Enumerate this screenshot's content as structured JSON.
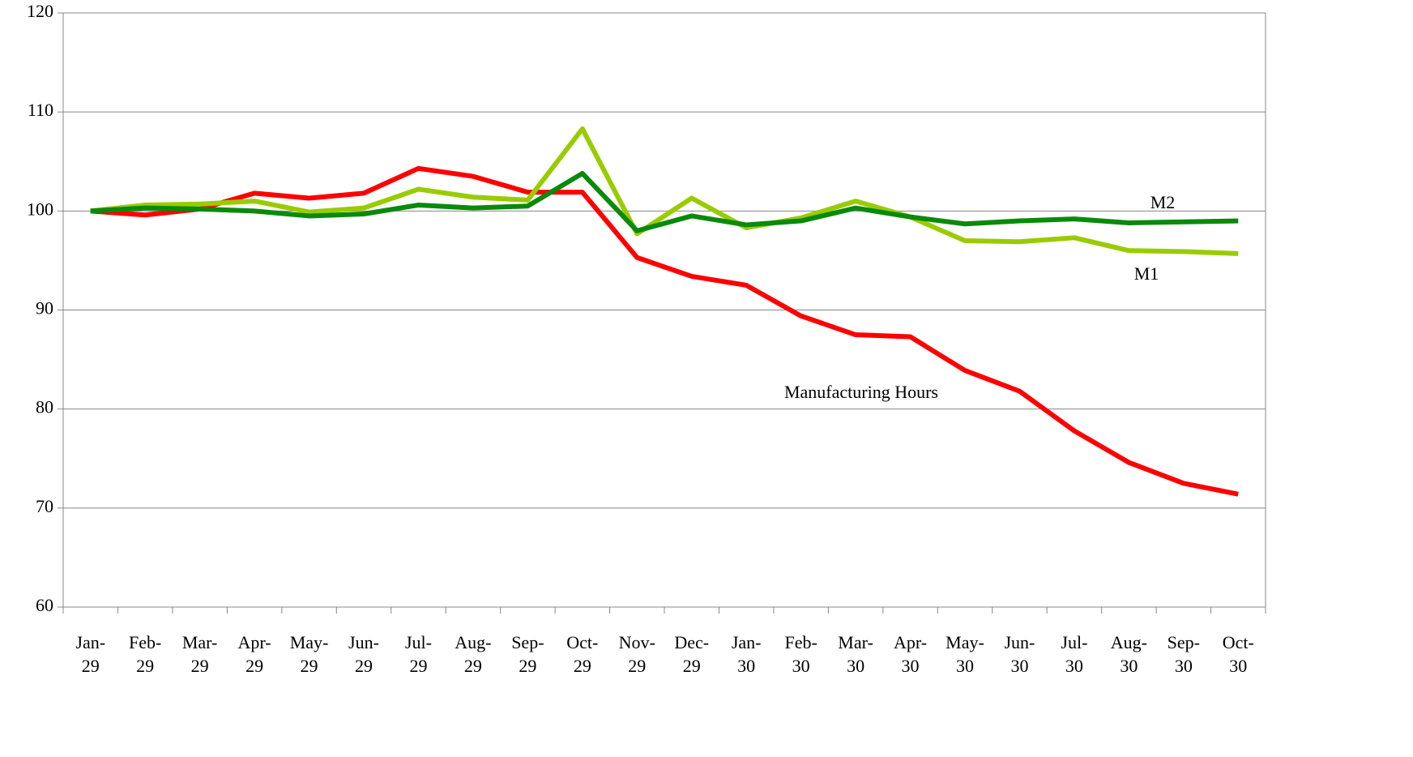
{
  "chart_data": {
    "type": "line",
    "categories": [
      "Jan-29",
      "Feb-29",
      "Mar-29",
      "Apr-29",
      "May-29",
      "Jun-29",
      "Jul-29",
      "Aug-29",
      "Sep-29",
      "Oct-29",
      "Nov-29",
      "Dec-29",
      "Jan-30",
      "Feb-30",
      "Mar-30",
      "Apr-30",
      "May-30",
      "Jun-30",
      "Jul-30",
      "Aug-30",
      "Sep-30",
      "Oct-30"
    ],
    "series": [
      {
        "name": "Manufacturing Hours",
        "color": "#ff0000",
        "values": [
          100,
          99.6,
          100.2,
          101.8,
          101.3,
          101.8,
          104.3,
          103.5,
          101.9,
          101.9,
          95.3,
          93.4,
          92.5,
          89.4,
          87.5,
          87.3,
          83.9,
          81.8,
          77.8,
          74.6,
          72.5,
          71.4
        ]
      },
      {
        "name": "M1",
        "color": "#99cc00",
        "values": [
          100,
          100.6,
          100.7,
          101.0,
          99.9,
          100.3,
          102.2,
          101.4,
          101.1,
          108.3,
          97.7,
          101.3,
          98.3,
          99.3,
          101.0,
          99.4,
          97.0,
          96.9,
          97.3,
          96.0,
          95.9,
          95.7
        ]
      },
      {
        "name": "M2",
        "color": "#0a8a0a",
        "values": [
          100,
          100.3,
          100.2,
          100.0,
          99.5,
          99.7,
          100.6,
          100.3,
          100.5,
          103.8,
          98.0,
          99.5,
          98.6,
          99.0,
          100.3,
          99.4,
          98.7,
          99.0,
          99.2,
          98.8,
          98.9,
          99.0
        ]
      }
    ],
    "ylim": [
      60,
      120
    ],
    "yticks": [
      60,
      70,
      80,
      90,
      100,
      110,
      120
    ],
    "grid": true
  }
}
